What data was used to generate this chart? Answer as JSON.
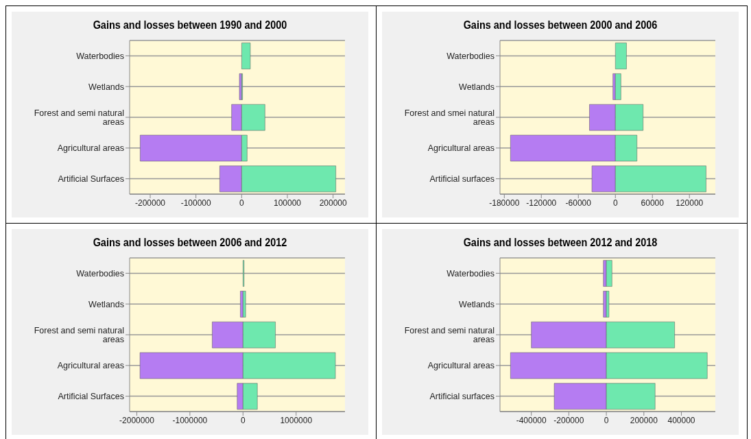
{
  "chart_data": [
    {
      "type": "bar",
      "orientation": "horizontal",
      "stacked": true,
      "title": "Gains and losses between 1990 and 2000",
      "categories": [
        "Waterbodies",
        "Wetlands",
        "Forest and semi natural areas",
        "Agricultural areas",
        "Artificial Surfaces"
      ],
      "series": [
        {
          "color": "#b57cf2",
          "values": [
            null,
            -5000,
            -22000,
            -222000,
            -48000
          ]
        },
        {
          "color": "#6ee8ae",
          "values": [
            19000,
            2000,
            51000,
            12000,
            206000
          ]
        }
      ],
      "xlim": [
        -245000,
        226000
      ],
      "xticks": [
        -200000,
        -100000,
        0,
        100000,
        200000
      ],
      "grid": "y"
    },
    {
      "type": "bar",
      "orientation": "horizontal",
      "stacked": true,
      "title": "Gains and losses between 2000 and 2006",
      "categories": [
        "Waterbodies",
        "Wetlands",
        "Forest and smei natural areas",
        "Agricultural areas",
        "Artificial surfaces"
      ],
      "series": [
        {
          "color": "#b57cf2",
          "values": [
            null,
            -4000,
            -42000,
            -170000,
            -38000
          ]
        },
        {
          "color": "#6ee8ae",
          "values": [
            18000,
            9000,
            45000,
            35000,
            147000
          ]
        }
      ],
      "xlim": [
        -187000,
        162000
      ],
      "xticks": [
        -180000,
        -120000,
        -60000,
        0,
        60000,
        120000
      ],
      "grid": "y"
    },
    {
      "type": "bar",
      "orientation": "horizontal",
      "stacked": true,
      "title": "Gains and losses between 2006 and 2012",
      "categories": [
        "Waterbodies",
        "Wetlands",
        "Forest and semi natural areas",
        "Agricultural areas",
        "Artificial Surfaces"
      ],
      "series": [
        {
          "color": "#b57cf2",
          "values": [
            null,
            -50000,
            -580000,
            -1940000,
            -110000
          ]
        },
        {
          "color": "#6ee8ae",
          "values": [
            20000,
            50000,
            610000,
            1740000,
            270000
          ]
        }
      ],
      "xlim": [
        -2135000,
        1920000
      ],
      "xticks": [
        -2000000,
        -1000000,
        0,
        1000000
      ],
      "grid": "y"
    },
    {
      "type": "bar",
      "orientation": "horizontal",
      "stacked": true,
      "title": "Gains and losses between 2012 and 2018",
      "categories": [
        "Waterbodies",
        "Wetlands",
        "Forest and semi natural areas",
        "Agricultural areas",
        "Artificial surfaces"
      ],
      "series": [
        {
          "color": "#b57cf2",
          "values": [
            -16000,
            -16000,
            -400000,
            -511000,
            -278000
          ]
        },
        {
          "color": "#6ee8ae",
          "values": [
            30000,
            14000,
            364000,
            538000,
            260000
          ]
        }
      ],
      "xlim": [
        -567000,
        581000
      ],
      "xticks": [
        -400000,
        -200000,
        0,
        200000,
        400000
      ],
      "grid": "y"
    }
  ]
}
